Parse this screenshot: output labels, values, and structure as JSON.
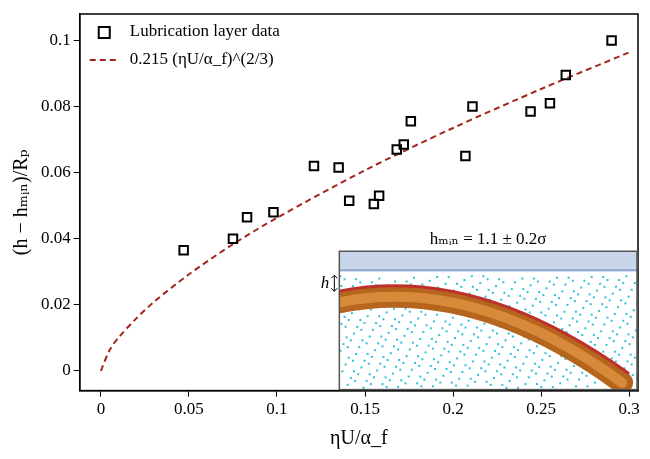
{
  "chart_data": {
    "type": "scatter",
    "xlabel": "ηU/α_f",
    "ylabel": "(h − hₘᵢₙ)/Rₚ",
    "series": [
      {
        "name": "Lubrication layer data",
        "type": "scatter",
        "marker": "square",
        "color": "#000000",
        "x": [
          0.047,
          0.075,
          0.083,
          0.098,
          0.121,
          0.135,
          0.141,
          0.155,
          0.158,
          0.168,
          0.172,
          0.176,
          0.207,
          0.211,
          0.244,
          0.255,
          0.264,
          0.29
        ],
        "values": [
          0.0365,
          0.04,
          0.0465,
          0.048,
          0.062,
          0.0615,
          0.0515,
          0.0505,
          0.053,
          0.067,
          0.0685,
          0.0755,
          0.065,
          0.08,
          0.0785,
          0.081,
          0.0895,
          0.1
        ]
      },
      {
        "name": "0.215 (ηU/α_f)^(2/3)",
        "type": "line",
        "line_style": "dashed",
        "color": "#a3261c",
        "x": [
          0,
          0.005,
          0.01,
          0.02,
          0.03,
          0.05,
          0.075,
          0.1,
          0.15,
          0.2,
          0.25,
          0.3
        ],
        "values": [
          0,
          0.0063,
          0.01,
          0.0158,
          0.0208,
          0.0292,
          0.0383,
          0.0463,
          0.0607,
          0.0735,
          0.0853,
          0.0964
        ]
      }
    ],
    "xlim": [
      -0.012,
      0.305
    ],
    "ylim": [
      -0.006,
      0.108
    ],
    "xticks": [
      0,
      0.05,
      0.1,
      0.15,
      0.2,
      0.25,
      0.3
    ],
    "yticks": [
      0,
      0.02,
      0.04,
      0.06,
      0.08,
      0.1
    ],
    "grid": false,
    "legend": "upper left",
    "annotations": [
      {
        "text": "hₘᵢₙ = 1.1 ± 0.2σ"
      },
      {
        "text": "h"
      }
    ]
  }
}
